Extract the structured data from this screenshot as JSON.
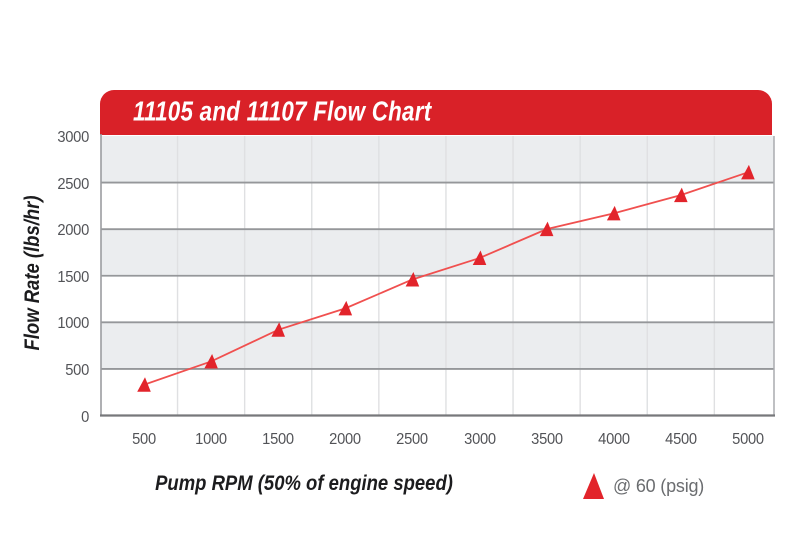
{
  "page": {
    "background": "#ffffff"
  },
  "chart_data": {
    "type": "line",
    "title": "11105 and 11107 Flow Chart",
    "xlabel": "Pump RPM (50% of engine speed)",
    "ylabel": "Flow Rate (lbs/hr)",
    "categories": [
      500,
      1000,
      1500,
      2000,
      2500,
      3000,
      3500,
      4000,
      4500,
      5000
    ],
    "series": [
      {
        "name": "@ 60 (psig)",
        "marker": "triangle",
        "values": [
          330,
          580,
          920,
          1150,
          1460,
          1690,
          2000,
          2170,
          2365,
          2610
        ]
      }
    ],
    "ylim": [
      0,
      3000
    ],
    "y_ticks": [
      0,
      500,
      1000,
      1500,
      2000,
      2500,
      3000
    ],
    "grid": {
      "horizontal_major": true,
      "vertical_between_categories": true,
      "alternating_bands": true
    },
    "legend": {
      "position": "bottom-right",
      "entries": [
        {
          "label": "@ 60 (psig)",
          "marker": "triangle"
        }
      ]
    },
    "colors": {
      "banner_red": "#d92128",
      "marker_red": "#e2242b",
      "line_red": "#f0504f",
      "band_gray": "#ebedef",
      "hgrid_gray": "#95979a",
      "vgrid_gray": "#dfe0e2",
      "axis_bottom_gray": "#77787b",
      "axis_side_gray": "#9b9da0",
      "axis_right_gray": "#aaacaf",
      "tick_text": "#525357",
      "axis_title_text": "#1c1c1e",
      "legend_text": "#6b6d70",
      "title_text": "#ffffff"
    }
  }
}
